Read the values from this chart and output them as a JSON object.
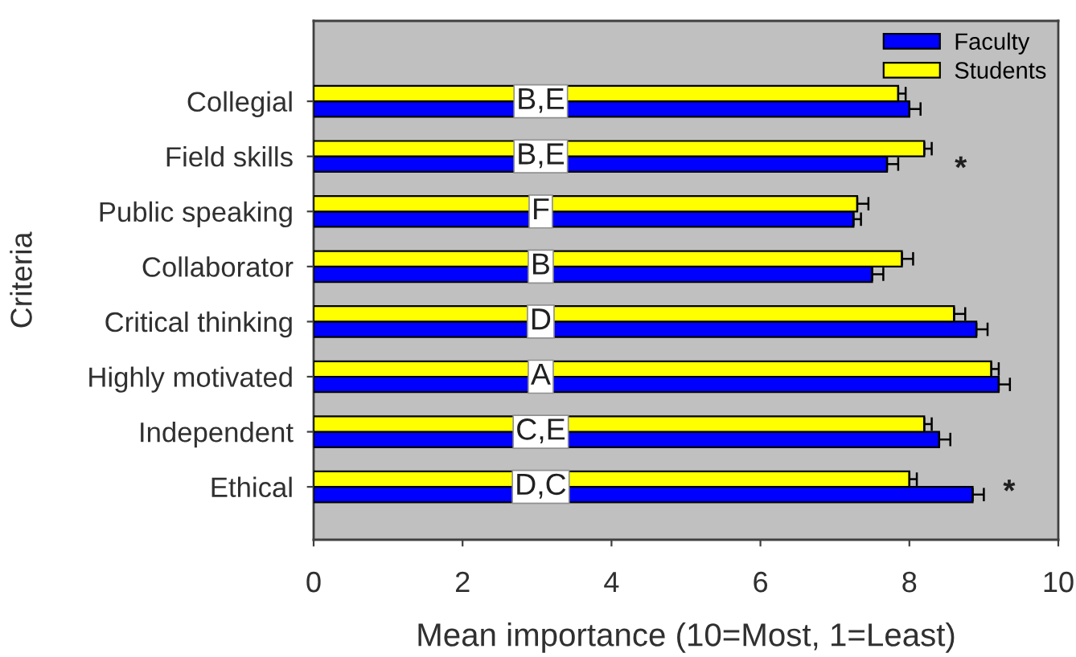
{
  "chart_data": {
    "type": "bar",
    "orientation": "horizontal",
    "xlabel": "Mean importance (10=Most, 1=Least)",
    "ylabel": "Criteria",
    "categories": [
      "Collegial",
      "Field skills",
      "Public speaking",
      "Collaborator",
      "Critical thinking",
      "Highly motivated",
      "Independent",
      "Ethical"
    ],
    "series": [
      {
        "name": "Faculty",
        "color": "#0000ff",
        "values": [
          8.0,
          7.7,
          7.25,
          7.5,
          8.9,
          9.2,
          8.4,
          8.85
        ],
        "errors": [
          [
            8.0,
            8.15
          ],
          [
            7.7,
            7.85
          ],
          [
            7.25,
            7.35
          ],
          [
            7.5,
            7.65
          ],
          [
            8.9,
            9.05
          ],
          [
            9.2,
            9.35
          ],
          [
            8.4,
            8.55
          ],
          [
            8.85,
            9.0
          ]
        ]
      },
      {
        "name": "Students",
        "color": "#ffff00",
        "values": [
          7.85,
          8.2,
          7.3,
          7.9,
          8.6,
          9.1,
          8.2,
          8.0
        ],
        "errors": [
          [
            7.85,
            7.95
          ],
          [
            8.2,
            8.3
          ],
          [
            7.3,
            7.45
          ],
          [
            7.9,
            8.05
          ],
          [
            8.6,
            8.75
          ],
          [
            9.1,
            9.2
          ],
          [
            8.2,
            8.3
          ],
          [
            8.0,
            8.1
          ]
        ]
      }
    ],
    "xlim": [
      0,
      10
    ],
    "xticks": [
      0,
      2,
      4,
      6,
      8,
      10
    ],
    "grid": false,
    "legend": "top right",
    "annotations": [
      "B,E",
      "B,E",
      "F",
      "B",
      "D",
      "A",
      "C,E",
      "D,C",
      "*",
      "*"
    ]
  }
}
